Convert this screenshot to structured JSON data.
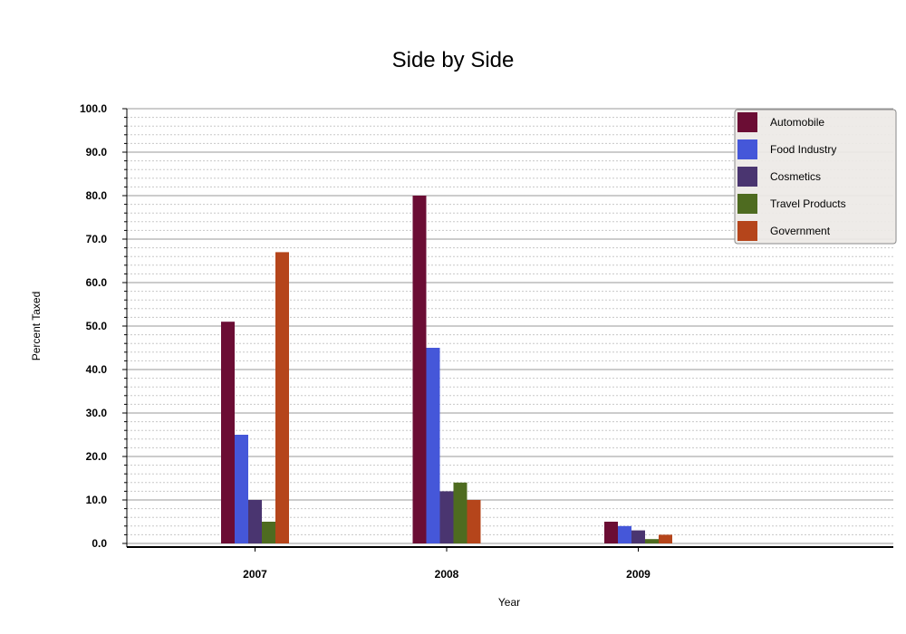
{
  "chart_data": {
    "type": "bar",
    "title": "Side by Side",
    "xlabel": "Year",
    "ylabel": "Percent Taxed",
    "categories": [
      "2007",
      "2008",
      "2009"
    ],
    "ylim": [
      0,
      100
    ],
    "yticks": [
      "0.0",
      "10.0",
      "20.0",
      "30.0",
      "40.0",
      "50.0",
      "60.0",
      "70.0",
      "80.0",
      "90.0",
      "100.0"
    ],
    "grid": true,
    "legend_position": "top-right",
    "series": [
      {
        "name": "Automobile",
        "color": "#6b0d34",
        "values": [
          51,
          80,
          5
        ]
      },
      {
        "name": "Food Industry",
        "color": "#4557d9",
        "values": [
          25,
          45,
          4
        ]
      },
      {
        "name": "Cosmetics",
        "color": "#4a3570",
        "values": [
          10,
          12,
          3
        ]
      },
      {
        "name": "Travel Products",
        "color": "#4e6b20",
        "values": [
          5,
          14,
          1
        ]
      },
      {
        "name": "Government",
        "color": "#b5451b",
        "values": [
          67,
          10,
          2
        ]
      }
    ]
  }
}
